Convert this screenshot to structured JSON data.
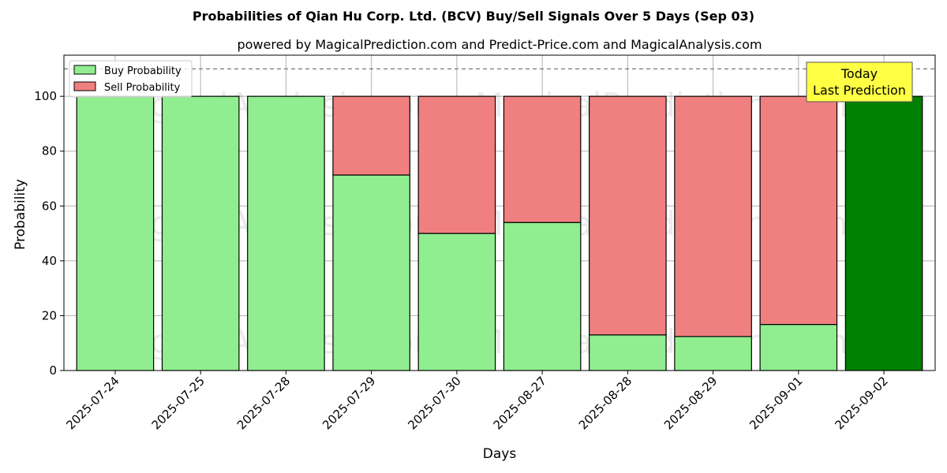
{
  "chart_data": {
    "type": "bar",
    "stacked": true,
    "title": "Probabilities of Qian Hu Corp. Ltd. (BCV) Buy/Sell Signals Over 5 Days (Sep 03)",
    "subtitle": "powered by MagicalPrediction.com and Predict-Price.com and MagicalAnalysis.com",
    "xlabel": "Days",
    "ylabel": "Probability",
    "ylim": [
      0,
      115
    ],
    "yticks": [
      0,
      20,
      40,
      60,
      80,
      100
    ],
    "grid": true,
    "reference_line": 110,
    "categories": [
      "2025-07-24",
      "2025-07-25",
      "2025-07-28",
      "2025-07-29",
      "2025-07-30",
      "2025-08-27",
      "2025-08-28",
      "2025-08-29",
      "2025-09-01",
      "2025-09-02"
    ],
    "series": [
      {
        "name": "Buy Probability",
        "color": "#90ee90",
        "values": [
          100,
          100,
          100,
          71.3,
          50,
          54,
          13,
          12.4,
          16.8,
          100
        ]
      },
      {
        "name": "Sell Probability",
        "color": "#f08080",
        "values": [
          0,
          0,
          0,
          28.7,
          50,
          46,
          87,
          87.6,
          83.2,
          0
        ]
      }
    ],
    "highlight": {
      "index": 9,
      "color": "#008000",
      "label_line1": "Today",
      "label_line2": "Last Prediction",
      "box_color": "#ffff44"
    },
    "legend_position": "top-left",
    "watermarks": [
      "MagicalAnalysis.com",
      "MagicalPrediction.com",
      "MagicalAnalysis.com",
      "MagicalPrediction.com",
      "MagicalAnalysis.com",
      "MagicalPrediction.com"
    ]
  }
}
